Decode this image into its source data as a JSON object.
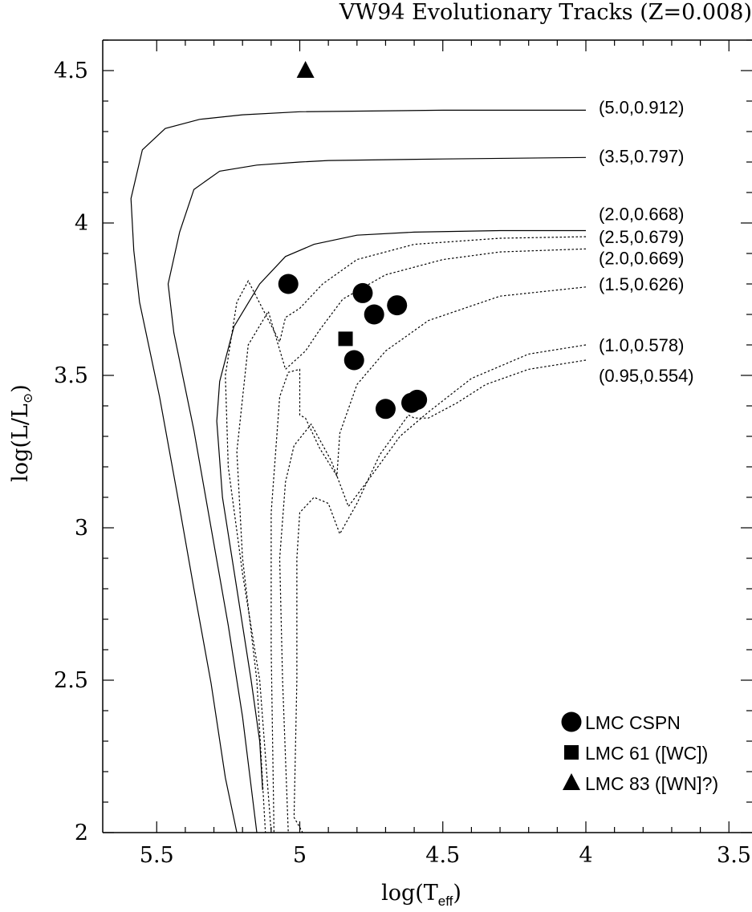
{
  "chart_data": {
    "type": "scatter",
    "title": "VW94 Evolutionary Tracks (Z=0.008)",
    "xlabel": "log(T",
    "xlabel_sub": "eff",
    "xlabel_close": ")",
    "ylabel": "log(L/L",
    "ylabel_sub": "⊙",
    "ylabel_close": ")",
    "xlim": [
      5.7,
      3.45
    ],
    "ylim": [
      2.0,
      4.6
    ],
    "x_reversed": true,
    "x_ticks": [
      {
        "value": 5.5,
        "label": "5.5"
      },
      {
        "value": 5.0,
        "label": "5"
      },
      {
        "value": 4.5,
        "label": "4.5"
      },
      {
        "value": 4.0,
        "label": "4"
      },
      {
        "value": 3.5,
        "label": "3.5"
      }
    ],
    "y_ticks": [
      {
        "value": 2.0,
        "label": "2"
      },
      {
        "value": 2.5,
        "label": "2.5"
      },
      {
        "value": 3.0,
        "label": "3"
      },
      {
        "value": 3.5,
        "label": "3.5"
      },
      {
        "value": 4.0,
        "label": "4"
      },
      {
        "value": 4.5,
        "label": "4.5"
      }
    ],
    "tracks": [
      {
        "label": "(5.0,0.912)",
        "style": "solid",
        "label_y": 4.38,
        "points": [
          [
            4.0,
            4.37
          ],
          [
            4.5,
            4.37
          ],
          [
            5.0,
            4.365
          ],
          [
            5.2,
            4.355
          ],
          [
            5.35,
            4.34
          ],
          [
            5.47,
            4.31
          ],
          [
            5.55,
            4.24
          ],
          [
            5.59,
            4.08
          ],
          [
            5.58,
            3.91
          ],
          [
            5.56,
            3.74
          ],
          [
            5.49,
            3.43
          ],
          [
            5.43,
            3.12
          ],
          [
            5.37,
            2.8
          ],
          [
            5.31,
            2.49
          ],
          [
            5.26,
            2.18
          ],
          [
            5.22,
            2.0
          ]
        ]
      },
      {
        "label": "(3.5,0.797)",
        "style": "solid",
        "label_y": 4.22,
        "points": [
          [
            4.0,
            4.215
          ],
          [
            4.5,
            4.21
          ],
          [
            4.9,
            4.205
          ],
          [
            5.0,
            4.2
          ],
          [
            5.15,
            4.19
          ],
          [
            5.28,
            4.17
          ],
          [
            5.37,
            4.11
          ],
          [
            5.42,
            3.97
          ],
          [
            5.46,
            3.8
          ],
          [
            5.44,
            3.64
          ],
          [
            5.37,
            3.32
          ],
          [
            5.31,
            3.0
          ],
          [
            5.25,
            2.68
          ],
          [
            5.2,
            2.38
          ],
          [
            5.15,
            2.0
          ]
        ]
      },
      {
        "label": "(2.0,0.668)",
        "style": "solid",
        "label_y": 4.03,
        "points": [
          [
            4.0,
            3.975
          ],
          [
            4.3,
            3.975
          ],
          [
            4.6,
            3.97
          ],
          [
            4.8,
            3.96
          ],
          [
            4.95,
            3.93
          ],
          [
            5.05,
            3.89
          ],
          [
            5.14,
            3.8
          ],
          [
            5.23,
            3.66
          ],
          [
            5.28,
            3.48
          ],
          [
            5.29,
            3.35
          ],
          [
            5.27,
            3.1
          ],
          [
            5.22,
            2.8
          ],
          [
            5.17,
            2.5
          ],
          [
            5.14,
            2.3
          ],
          [
            5.13,
            2.14
          ]
        ]
      },
      {
        "label": "(2.5,0.679)",
        "style": "dotted",
        "label_y": 3.955,
        "points": [
          [
            4.0,
            3.955
          ],
          [
            4.3,
            3.95
          ],
          [
            4.6,
            3.93
          ],
          [
            4.8,
            3.88
          ],
          [
            4.92,
            3.8
          ],
          [
            5.0,
            3.72
          ],
          [
            5.05,
            3.69
          ],
          [
            5.07,
            3.61
          ],
          [
            5.18,
            3.81
          ],
          [
            5.22,
            3.74
          ],
          [
            5.26,
            3.5
          ],
          [
            5.25,
            3.2
          ],
          [
            5.2,
            2.85
          ],
          [
            5.14,
            2.5
          ],
          [
            5.1,
            2.0
          ]
        ]
      },
      {
        "label": "(2.0,0.669)",
        "style": "dotted",
        "label_y": 3.885,
        "points": [
          [
            4.0,
            3.915
          ],
          [
            4.3,
            3.905
          ],
          [
            4.5,
            3.88
          ],
          [
            4.7,
            3.83
          ],
          [
            4.85,
            3.75
          ],
          [
            4.93,
            3.65
          ],
          [
            4.98,
            3.58
          ],
          [
            5.05,
            3.52
          ],
          [
            5.11,
            3.71
          ],
          [
            5.18,
            3.6
          ],
          [
            5.22,
            3.25
          ],
          [
            5.2,
            2.9
          ],
          [
            5.15,
            2.5
          ],
          [
            5.12,
            2.0
          ]
        ]
      },
      {
        "label": "(1.5,0.626)",
        "style": "dotted",
        "label_y": 3.8,
        "points": [
          [
            4.0,
            3.79
          ],
          [
            4.3,
            3.76
          ],
          [
            4.55,
            3.68
          ],
          [
            4.7,
            3.58
          ],
          [
            4.8,
            3.47
          ],
          [
            4.86,
            3.31
          ],
          [
            4.87,
            3.17
          ],
          [
            4.93,
            3.26
          ],
          [
            4.98,
            3.36
          ],
          [
            5.0,
            3.37
          ],
          [
            5.0,
            3.52
          ],
          [
            5.04,
            3.51
          ],
          [
            5.07,
            3.43
          ],
          [
            5.1,
            3.05
          ],
          [
            5.1,
            2.6
          ],
          [
            5.09,
            2.0
          ]
        ]
      },
      {
        "label": "(1.0,0.578)",
        "style": "dotted",
        "label_y": 3.6,
        "points": [
          [
            4.0,
            3.6
          ],
          [
            4.2,
            3.57
          ],
          [
            4.4,
            3.49
          ],
          [
            4.55,
            3.38
          ],
          [
            4.65,
            3.3
          ],
          [
            4.75,
            3.17
          ],
          [
            4.83,
            3.07
          ],
          [
            4.89,
            3.22
          ],
          [
            4.96,
            3.34
          ],
          [
            5.02,
            3.27
          ],
          [
            5.05,
            3.15
          ],
          [
            5.07,
            2.9
          ],
          [
            5.06,
            2.5
          ],
          [
            5.04,
            2.0
          ]
        ]
      },
      {
        "label": "(0.95,0.554)",
        "style": "dotted",
        "label_y": 3.5,
        "points": [
          [
            4.0,
            3.55
          ],
          [
            4.2,
            3.52
          ],
          [
            4.35,
            3.47
          ],
          [
            4.45,
            3.41
          ],
          [
            4.55,
            3.36
          ],
          [
            4.6,
            3.36
          ],
          [
            4.62,
            3.37
          ],
          [
            4.72,
            3.24
          ],
          [
            4.8,
            3.08
          ],
          [
            4.86,
            2.98
          ],
          [
            4.9,
            3.08
          ],
          [
            4.95,
            3.1
          ],
          [
            5.0,
            3.05
          ],
          [
            5.01,
            2.9
          ],
          [
            5.01,
            2.5
          ],
          [
            5.02,
            2.05
          ],
          [
            4.99,
            2.0
          ]
        ]
      }
    ],
    "series": [
      {
        "name": "LMC CSPN",
        "marker": "circle",
        "points": [
          [
            5.04,
            3.8
          ],
          [
            4.78,
            3.77
          ],
          [
            4.66,
            3.73
          ],
          [
            4.74,
            3.7
          ],
          [
            4.81,
            3.55
          ],
          [
            4.7,
            3.39
          ],
          [
            4.61,
            3.41
          ],
          [
            4.59,
            3.42
          ]
        ]
      },
      {
        "name": "LMC 61 ([WC])",
        "marker": "square",
        "points": [
          [
            4.84,
            3.62
          ]
        ]
      },
      {
        "name": "LMC 83 ([WN]?)",
        "marker": "triangle",
        "points": [
          [
            4.98,
            4.5
          ]
        ]
      }
    ],
    "legend_position": "bottom-right",
    "grid": false
  }
}
